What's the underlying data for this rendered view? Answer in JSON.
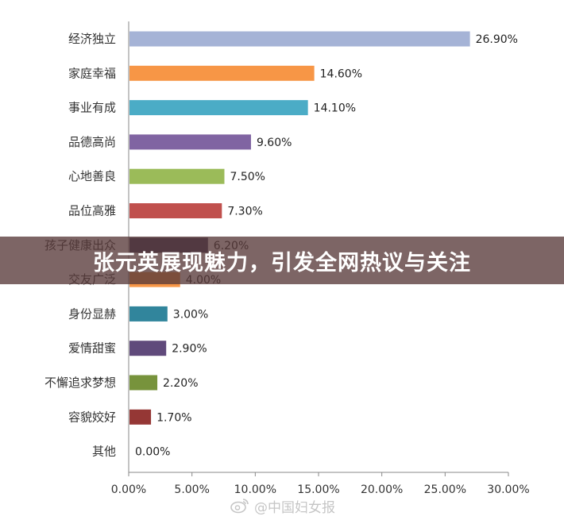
{
  "banner": {
    "text": "张元英展现魅力，引发全网热议与关注"
  },
  "watermark": {
    "text": "@中国妇女报",
    "icon": "weibo-icon"
  },
  "chart_data": {
    "type": "bar",
    "orientation": "horizontal",
    "title": "",
    "xlabel": "",
    "ylabel": "",
    "xlim": [
      0,
      30
    ],
    "x_ticks": [
      "0.00%",
      "5.00%",
      "10.00%",
      "15.00%",
      "20.00%",
      "25.00%",
      "30.00%"
    ],
    "grid": false,
    "categories": [
      "经济独立",
      "家庭幸福",
      "事业有成",
      "品德高尚",
      "心地善良",
      "品位高雅",
      "孩子健康出众",
      "交友广泛",
      "身份显赫",
      "爱情甜蜜",
      "不懈追求梦想",
      "容貌姣好",
      "其他"
    ],
    "values": [
      26.9,
      14.6,
      14.1,
      9.6,
      7.5,
      7.3,
      6.2,
      4.0,
      3.0,
      2.9,
      2.2,
      1.7,
      0.0
    ],
    "labels": [
      "26.90%",
      "14.60%",
      "14.10%",
      "9.60%",
      "7.50%",
      "7.30%",
      "6.20%",
      "4.00%",
      "3.00%",
      "2.90%",
      "2.20%",
      "1.70%",
      "0.00%"
    ],
    "colors": [
      "#a5b3d6",
      "#f79646",
      "#4bacc6",
      "#8064a2",
      "#9bbb59",
      "#c0504d",
      "#3c3a5e",
      "#f79646",
      "#31859c",
      "#604a7b",
      "#77933c",
      "#953735",
      "#4f81bd"
    ]
  }
}
